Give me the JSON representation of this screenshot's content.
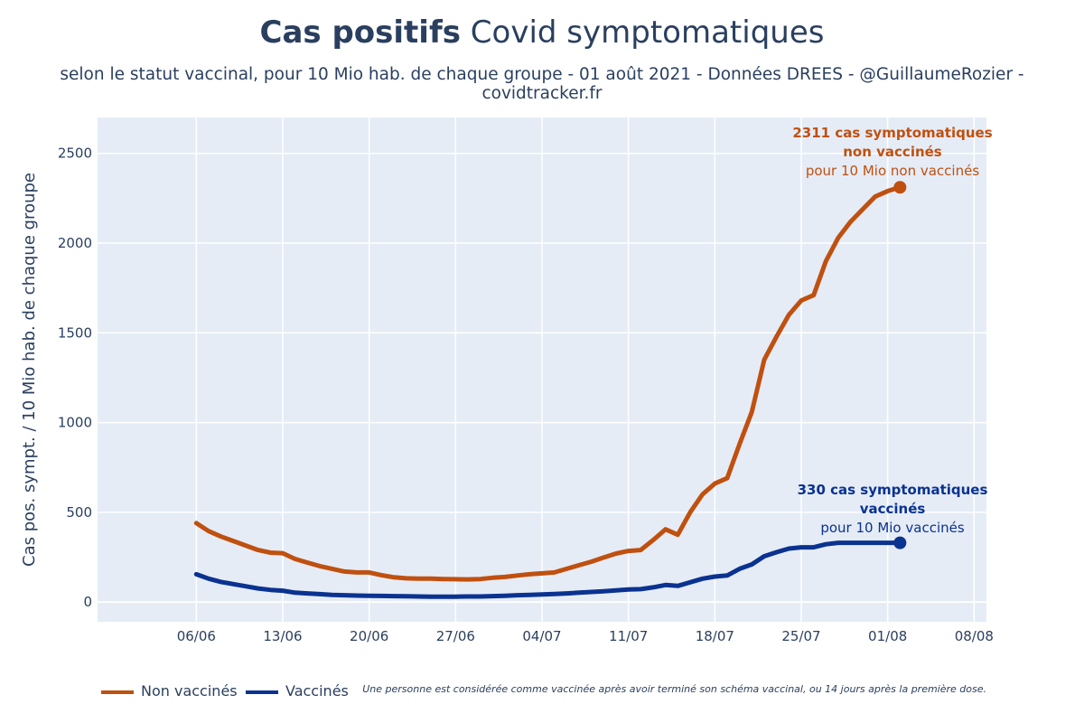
{
  "header": {
    "title_bold": "Cas positifs",
    "title_rest": " Covid symptomatiques",
    "subtitle": "selon le statut vaccinal, pour 10 Mio hab. de chaque groupe - 01 août 2021 - Données DREES - @GuillaumeRozier - covidtracker.fr"
  },
  "colors": {
    "unvax": "#c0500f",
    "vax": "#0a3290",
    "plot_bg": "#e5ecf6",
    "grid": "#ffffff"
  },
  "annotations": {
    "unvax": {
      "line1": "2311 cas symptomatiques",
      "line2": "non vaccinés",
      "line3": "pour 10 Mio non vaccinés"
    },
    "vax": {
      "line1": "330 cas symptomatiques",
      "line2": "vaccinés",
      "line3": "pour 10 Mio vaccinés"
    }
  },
  "legend": {
    "unvax": "Non vaccinés",
    "vax": "Vaccinés"
  },
  "note": "Une personne est considérée comme vaccinée après avoir terminé son schéma vaccinal, ou 14 jours après la première dose.",
  "chart_data": {
    "type": "line",
    "title": "Cas positifs Covid symptomatiques",
    "xlabel": "",
    "ylabel": "Cas pos. sympt. / 10 Mio hab. de chaque groupe",
    "x_ticks": [
      "06/06",
      "13/06",
      "20/06",
      "27/06",
      "04/07",
      "11/07",
      "18/07",
      "25/07",
      "01/08",
      "08/08"
    ],
    "x_range_days": [
      -8,
      64
    ],
    "ylim": [
      -110,
      2700
    ],
    "y_ticks": [
      0,
      500,
      1000,
      1500,
      2000,
      2500
    ],
    "series": [
      {
        "name": "Non vaccinés",
        "x": [
          0,
          1,
          2,
          3,
          4,
          5,
          6,
          7,
          8,
          9,
          10,
          11,
          12,
          13,
          14,
          15,
          16,
          17,
          18,
          19,
          20,
          21,
          22,
          23,
          24,
          25,
          26,
          27,
          28,
          29,
          30,
          31,
          32,
          33,
          34,
          35,
          36,
          37,
          38,
          39,
          40,
          41,
          42,
          43,
          44,
          45,
          46,
          47,
          48,
          49,
          50,
          51,
          52,
          53,
          54,
          55,
          56
        ],
        "values": [
          440,
          395,
          365,
          340,
          315,
          290,
          275,
          272,
          240,
          220,
          200,
          185,
          170,
          165,
          165,
          150,
          138,
          132,
          130,
          130,
          128,
          127,
          126,
          128,
          135,
          140,
          148,
          155,
          160,
          165,
          185,
          205,
          225,
          248,
          270,
          285,
          290,
          345,
          405,
          375,
          500,
          600,
          660,
          690,
          880,
          1060,
          1350,
          1480,
          1600,
          1680,
          1710,
          1900,
          2030,
          2120,
          2190,
          2260,
          2290
        ],
        "endpoint": {
          "x": 57,
          "value": 2311
        }
      },
      {
        "name": "Vaccinés",
        "x": [
          0,
          1,
          2,
          3,
          4,
          5,
          6,
          7,
          8,
          9,
          10,
          11,
          12,
          13,
          14,
          15,
          16,
          17,
          18,
          19,
          20,
          21,
          22,
          23,
          24,
          25,
          26,
          27,
          28,
          29,
          30,
          31,
          32,
          33,
          34,
          35,
          36,
          37,
          38,
          39,
          40,
          41,
          42,
          43,
          44,
          45,
          46,
          47,
          48,
          49,
          50,
          51,
          52,
          53,
          54,
          55,
          56
        ],
        "values": [
          155,
          130,
          112,
          100,
          88,
          76,
          68,
          63,
          52,
          48,
          44,
          40,
          38,
          36,
          35,
          34,
          33,
          32,
          31,
          30,
          30,
          30,
          31,
          31,
          33,
          35,
          38,
          40,
          42,
          45,
          48,
          52,
          56,
          60,
          65,
          70,
          72,
          82,
          95,
          90,
          110,
          130,
          142,
          148,
          185,
          210,
          255,
          278,
          298,
          305,
          305,
          322,
          330,
          330,
          330,
          330,
          330
        ],
        "endpoint": {
          "x": 57,
          "value": 330
        }
      }
    ]
  }
}
